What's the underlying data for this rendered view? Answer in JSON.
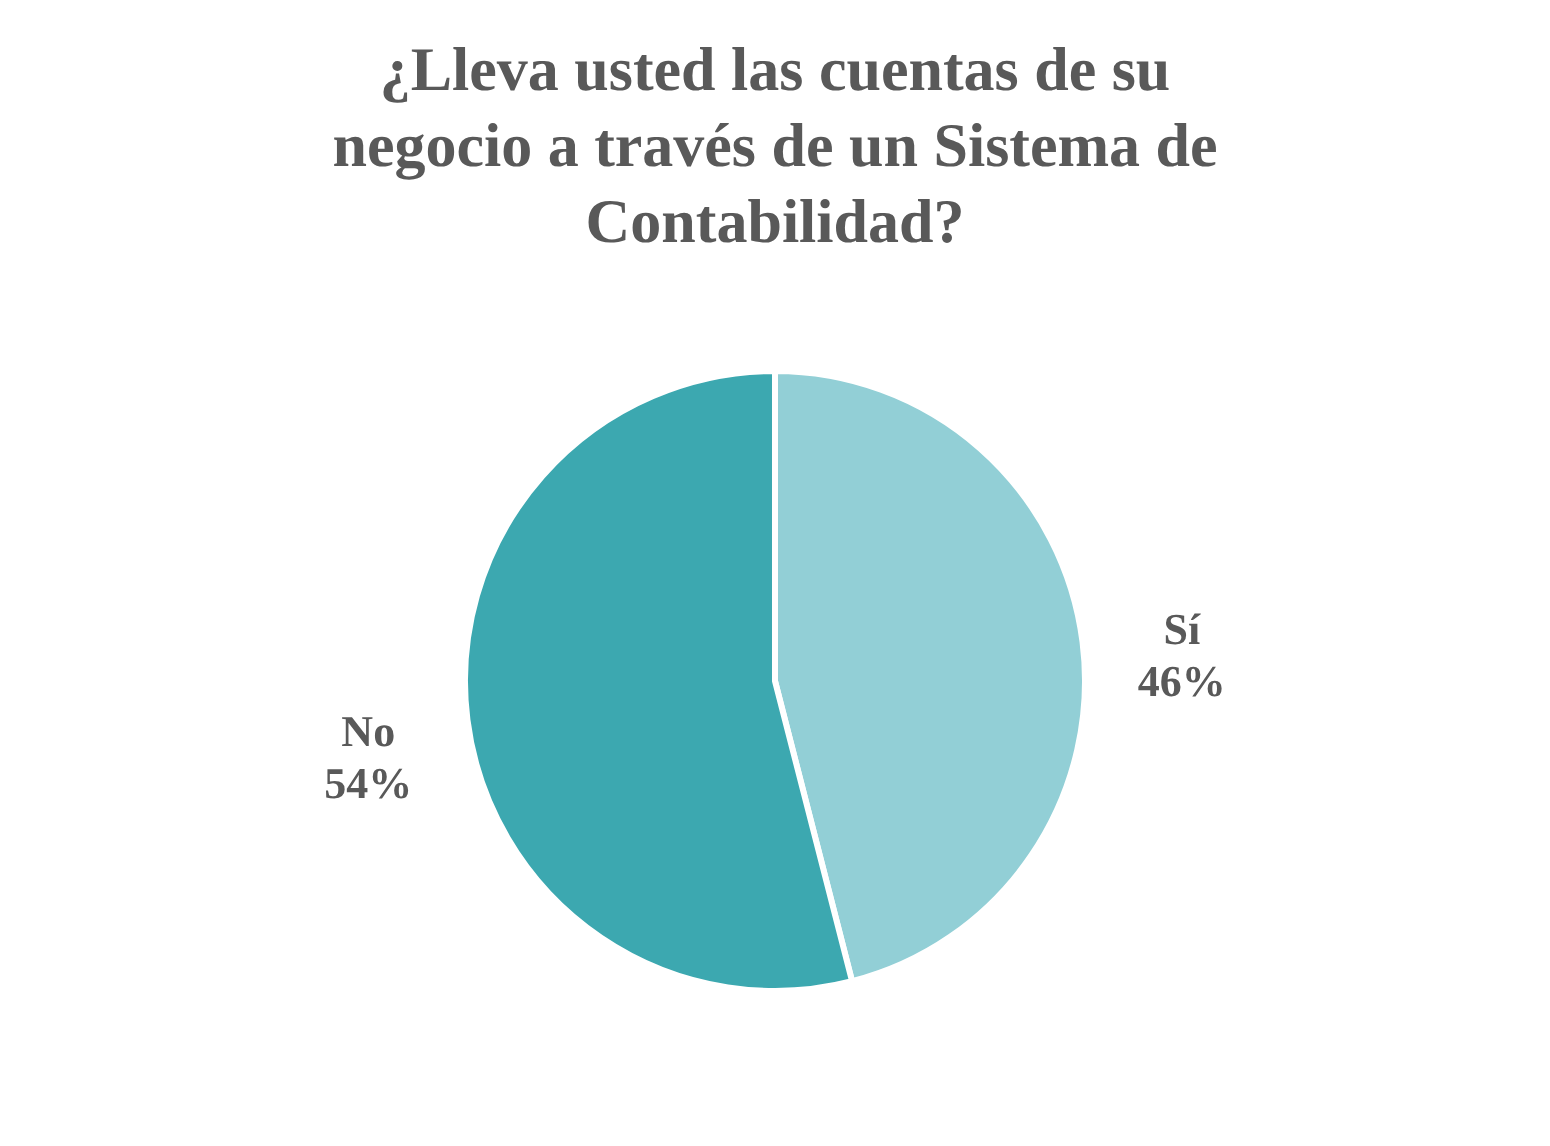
{
  "chart_data": {
    "type": "pie",
    "title": "¿Lleva usted las cuentas de su negocio a través de un Sistema de Contabilidad?",
    "categories": [
      "Sí",
      "No"
    ],
    "values": [
      46,
      54
    ],
    "colors": [
      "#92cfd6",
      "#3ca8b0"
    ],
    "value_labels": [
      "46%",
      "54%"
    ],
    "legend": false
  }
}
